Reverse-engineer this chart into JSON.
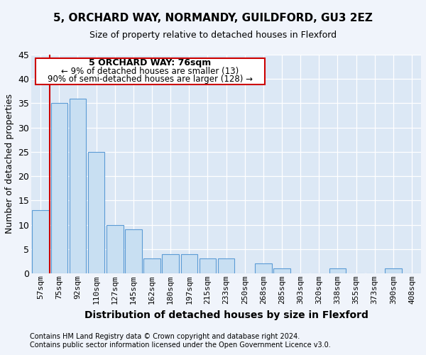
{
  "title": "5, ORCHARD WAY, NORMANDY, GUILDFORD, GU3 2EZ",
  "subtitle": "Size of property relative to detached houses in Flexford",
  "xlabel": "Distribution of detached houses by size in Flexford",
  "ylabel": "Number of detached properties",
  "footnote1": "Contains HM Land Registry data © Crown copyright and database right 2024.",
  "footnote2": "Contains public sector information licensed under the Open Government Licence v3.0.",
  "annotation_title": "5 ORCHARD WAY: 76sqm",
  "annotation_line2": "← 9% of detached houses are smaller (13)",
  "annotation_line3": "90% of semi-detached houses are larger (128) →",
  "bar_color": "#c8dff2",
  "bar_edge_color": "#5b9bd5",
  "highlight_line_color": "#cc0000",
  "annotation_box_color": "#ffffff",
  "annotation_box_edge": "#cc0000",
  "plot_bg_color": "#dce8f5",
  "fig_bg_color": "#f0f4fb",
  "categories": [
    "57sqm",
    "75sqm",
    "92sqm",
    "110sqm",
    "127sqm",
    "145sqm",
    "162sqm",
    "180sqm",
    "197sqm",
    "215sqm",
    "233sqm",
    "250sqm",
    "268sqm",
    "285sqm",
    "303sqm",
    "320sqm",
    "338sqm",
    "355sqm",
    "373sqm",
    "390sqm",
    "408sqm"
  ],
  "values": [
    13,
    35,
    36,
    25,
    10,
    9,
    3,
    4,
    4,
    3,
    3,
    0,
    2,
    1,
    0,
    0,
    1,
    0,
    0,
    1,
    0
  ],
  "red_line_x": 0.5,
  "ylim": [
    0,
    45
  ],
  "yticks": [
    0,
    5,
    10,
    15,
    20,
    25,
    30,
    35,
    40,
    45
  ],
  "title_fontsize": 11,
  "subtitle_fontsize": 9,
  "ylabel_fontsize": 9,
  "xlabel_fontsize": 9,
  "tick_fontsize": 8,
  "footnote_fontsize": 7
}
